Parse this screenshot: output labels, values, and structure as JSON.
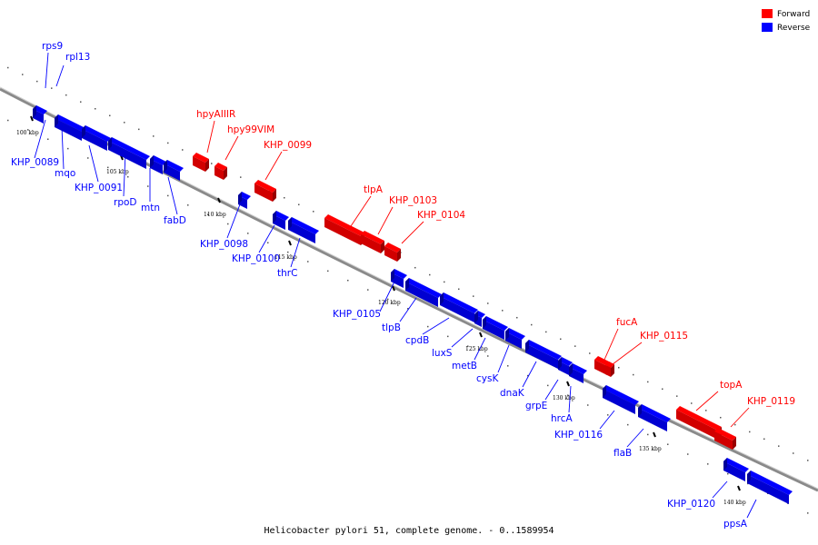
{
  "caption": "Helicobacter pylori 51, complete genome. - 0..1589954",
  "legend": [
    {
      "label": "Forward",
      "color": "#ff0000"
    },
    {
      "label": "Reverse",
      "color": "#0000ff"
    }
  ],
  "colors": {
    "forward": "#ff0000",
    "reverse": "#0000ff",
    "backbone": "#7a7a7a"
  },
  "scale_ticks": [
    "100 kbp",
    "105 kbp",
    "110 kbp",
    "115 kbp",
    "120 kbp",
    "125 kbp",
    "130 kbp",
    "135 kbp",
    "140 kbp"
  ],
  "genes": [
    {
      "name": "rps9",
      "strand": "reverse"
    },
    {
      "name": "rpl13",
      "strand": "reverse"
    },
    {
      "name": "KHP_0089",
      "strand": "reverse"
    },
    {
      "name": "mqo",
      "strand": "reverse"
    },
    {
      "name": "KHP_0091",
      "strand": "reverse"
    },
    {
      "name": "rpoD",
      "strand": "reverse"
    },
    {
      "name": "mtn",
      "strand": "reverse"
    },
    {
      "name": "fabD",
      "strand": "reverse"
    },
    {
      "name": "hpyAIIIR",
      "strand": "forward"
    },
    {
      "name": "hpy99VIM",
      "strand": "forward"
    },
    {
      "name": "KHP_0099",
      "strand": "forward"
    },
    {
      "name": "KHP_0098",
      "strand": "reverse"
    },
    {
      "name": "KHP_0100",
      "strand": "reverse"
    },
    {
      "name": "thrC",
      "strand": "reverse"
    },
    {
      "name": "tlpA",
      "strand": "forward"
    },
    {
      "name": "KHP_0103",
      "strand": "forward"
    },
    {
      "name": "KHP_0104",
      "strand": "forward"
    },
    {
      "name": "KHP_0105",
      "strand": "reverse"
    },
    {
      "name": "tlpB",
      "strand": "reverse"
    },
    {
      "name": "cpdB",
      "strand": "reverse"
    },
    {
      "name": "luxS",
      "strand": "reverse"
    },
    {
      "name": "metB",
      "strand": "reverse"
    },
    {
      "name": "cysK",
      "strand": "reverse"
    },
    {
      "name": "dnaK",
      "strand": "reverse"
    },
    {
      "name": "grpE",
      "strand": "reverse"
    },
    {
      "name": "hrcA",
      "strand": "reverse"
    },
    {
      "name": "fucA",
      "strand": "forward"
    },
    {
      "name": "KHP_0115",
      "strand": "forward"
    },
    {
      "name": "KHP_0116",
      "strand": "reverse"
    },
    {
      "name": "flaB",
      "strand": "reverse"
    },
    {
      "name": "topA",
      "strand": "forward"
    },
    {
      "name": "KHP_0119",
      "strand": "forward"
    },
    {
      "name": "KHP_0120",
      "strand": "reverse"
    },
    {
      "name": "ppsA",
      "strand": "reverse"
    }
  ]
}
